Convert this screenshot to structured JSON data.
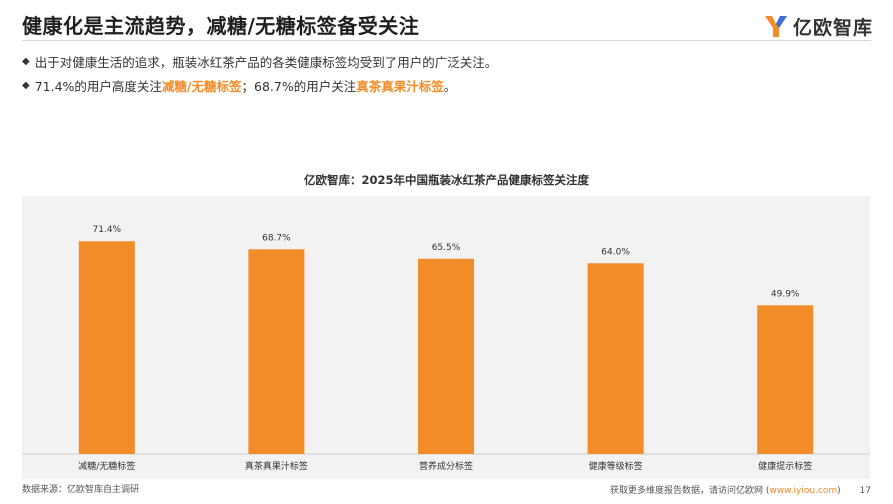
{
  "header": {
    "title": "健康化是主流趋势，减糖/无糖标签备受关注",
    "logo_text": "亿欧智库"
  },
  "bullets": [
    {
      "text": "出于对健康生活的追求，瓶装冰红茶产品的各类健康标签均受到了用户的广泛关注。"
    },
    {
      "pre": "71.4%的用户高度关注",
      "hl1": "减糖/无糖标签",
      "mid": "；68.7%的用户关注",
      "hl2": "真茶真果汁标签",
      "post": "。"
    }
  ],
  "chart_data": {
    "type": "bar",
    "title": "亿欧智库：2025年中国瓶装冰红茶产品健康标签关注度",
    "categories": [
      "减糖/无糖标签",
      "真茶真果汁标签",
      "营养成分标签",
      "健康等级标签",
      "健康提示标签"
    ],
    "values": [
      71.4,
      68.7,
      65.5,
      64.0,
      49.9
    ],
    "value_labels": [
      "71.4%",
      "68.7%",
      "65.5%",
      "64.0%",
      "49.9%"
    ],
    "unit": "%",
    "bar_color": "#F28C28",
    "background": "#F2F2F2",
    "grid": false,
    "legend": "none"
  },
  "footer": {
    "source": "数据来源：亿欧智库自主调研",
    "cta_pre": "获取更多维度报告数据，请访问亿欧网 (",
    "cta_link": "www.iyiou.com",
    "cta_post": ")",
    "page": "17"
  }
}
